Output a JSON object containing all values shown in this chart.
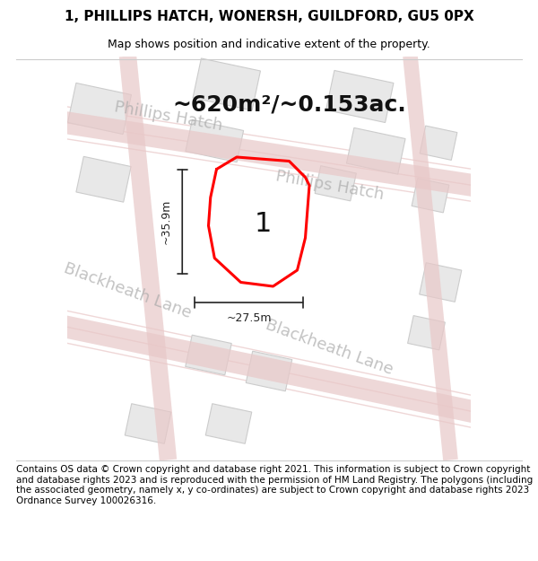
{
  "title_line1": "1, PHILLIPS HATCH, WONERSH, GUILDFORD, GU5 0PX",
  "title_line2": "Map shows position and indicative extent of the property.",
  "area_text": "~620m²/~0.153ac.",
  "label_number": "1",
  "dim_width": "~27.5m",
  "dim_height": "~35.9m",
  "footer_text": "Contains OS data © Crown copyright and database right 2021. This information is subject to Crown copyright and database rights 2023 and is reproduced with the permission of HM Land Registry. The polygons (including the associated geometry, namely x, y co-ordinates) are subject to Crown copyright and database rights 2023 Ordnance Survey 100026316.",
  "bg_color": "#f7f2f2",
  "road_color": "#e8c8c8",
  "building_fill": "#e8e8e8",
  "building_edge": "#cccccc",
  "plot_color": "red",
  "street_label_color": "#aaaaaa",
  "dim_color": "#222222",
  "footer_fontsize": 7.5,
  "title1_fontsize": 11,
  "title2_fontsize": 9,
  "area_fontsize": 18,
  "label_fontsize": 22,
  "street_fontsize": 13
}
